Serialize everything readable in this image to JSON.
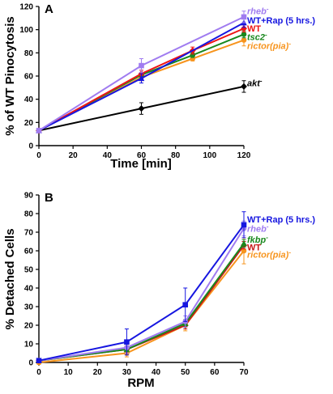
{
  "chart_data": [
    {
      "panel_label": "A",
      "type": "line",
      "xlabel": "Time [min]",
      "ylabel": "% of WT Pinocytosis",
      "xlim": [
        0,
        120
      ],
      "ylim": [
        0,
        120
      ],
      "xticks": [
        0,
        20,
        40,
        60,
        80,
        100,
        120
      ],
      "yticks": [
        0,
        20,
        40,
        60,
        80,
        100,
        120
      ],
      "grid": false,
      "legend": "inline labels at right end of lines",
      "series": [
        {
          "name": "rheb⁻",
          "color": "#a07cf0",
          "marker": "square",
          "x": [
            0,
            60,
            120
          ],
          "y": [
            13,
            69,
            111
          ],
          "err": [
            1,
            6,
            5
          ]
        },
        {
          "name": "WT+Rap (5 hrs.)",
          "color": "#1616e0",
          "marker": "triangle",
          "x": [
            0,
            60,
            120
          ],
          "y": [
            13,
            58,
            106
          ],
          "err": [
            1,
            4,
            4
          ]
        },
        {
          "name": "WT",
          "color": "#ef1414",
          "marker": "diamond",
          "x": [
            0,
            60,
            90,
            120
          ],
          "y": [
            13,
            62,
            82,
            101
          ],
          "err": [
            1,
            3,
            3,
            3
          ]
        },
        {
          "name": "tsc2⁻",
          "color": "#19881e",
          "marker": "circle",
          "x": [
            0,
            60,
            90,
            120
          ],
          "y": [
            13,
            61,
            78,
            96
          ],
          "err": [
            1,
            2,
            2,
            3
          ]
        },
        {
          "name": "rictor(pia)⁻",
          "color": "#f7941d",
          "marker": "circle",
          "x": [
            0,
            60,
            90,
            120
          ],
          "y": [
            13,
            59,
            75,
            91
          ],
          "err": [
            1,
            3,
            2,
            5
          ]
        },
        {
          "name": "akt⁻",
          "color": "#000000",
          "marker": "diamond",
          "x": [
            0,
            60,
            120
          ],
          "y": [
            13,
            32,
            51
          ],
          "err": [
            1,
            5,
            5
          ]
        }
      ],
      "label_order": [
        {
          "text": "rheb⁻",
          "color": "#a07cf0",
          "y": 116
        },
        {
          "text": "WT+Rap (5 hrs.)",
          "color": "#1616e0",
          "y": 108
        },
        {
          "text": "WT",
          "color": "#ef1414",
          "y": 101
        },
        {
          "text": "tsc2⁻",
          "color": "#19881e",
          "y": 94
        },
        {
          "text": "rictor(pia)⁻",
          "color": "#f7941d",
          "y": 86
        },
        {
          "text": "akt⁻",
          "color": "#000000",
          "y": 54
        }
      ]
    },
    {
      "panel_label": "B",
      "type": "line",
      "xlabel": "RPM",
      "ylabel": "% Detached Cells",
      "xlim": [
        0,
        70
      ],
      "ylim": [
        0,
        90
      ],
      "xticks": [
        0,
        10,
        20,
        30,
        40,
        50,
        60,
        70
      ],
      "yticks": [
        0,
        10,
        20,
        30,
        40,
        50,
        60,
        70,
        80,
        90
      ],
      "grid": false,
      "legend": "inline labels at right end of lines",
      "series": [
        {
          "name": "WT+Rap (5 hrs.)",
          "color": "#1616e0",
          "marker": "square",
          "x": [
            0,
            30,
            50,
            70
          ],
          "y": [
            1,
            11,
            31,
            74
          ],
          "err": [
            1,
            7,
            9,
            7
          ]
        },
        {
          "name": "rheb⁻",
          "color": "#a07cf0",
          "marker": "circle",
          "x": [
            0,
            30,
            50,
            70
          ],
          "y": [
            1,
            8,
            22,
            72
          ],
          "err": [
            1,
            3,
            3,
            4
          ]
        },
        {
          "name": "fkbp⁻",
          "color": "#19881e",
          "marker": "triangle",
          "x": [
            0,
            30,
            50,
            70
          ],
          "y": [
            1,
            7,
            21,
            64
          ],
          "err": [
            1,
            2,
            2,
            2
          ]
        },
        {
          "name": "WT",
          "color": "#c81818",
          "marker": "diamond",
          "x": [
            0,
            30,
            50,
            70
          ],
          "y": [
            1,
            7,
            20,
            63
          ],
          "err": [
            1,
            2,
            2,
            2
          ]
        },
        {
          "name": "rictor(pia)⁻",
          "color": "#f7941d",
          "marker": "circle",
          "x": [
            0,
            30,
            50,
            70
          ],
          "y": [
            0,
            5,
            20,
            60
          ],
          "err": [
            1,
            2,
            3,
            7
          ]
        }
      ],
      "label_order": [
        {
          "text": "WT+Rap (5 hrs.)",
          "color": "#1616e0",
          "y": 77
        },
        {
          "text": "rheb⁻",
          "color": "#a07cf0",
          "y": 72
        },
        {
          "text": "fkbp⁻",
          "color": "#19881e",
          "y": 66
        },
        {
          "text": "WT",
          "color": "#c81818",
          "y": 62
        },
        {
          "text": "rictor(pia)⁻",
          "color": "#f7941d",
          "y": 58
        }
      ]
    }
  ]
}
